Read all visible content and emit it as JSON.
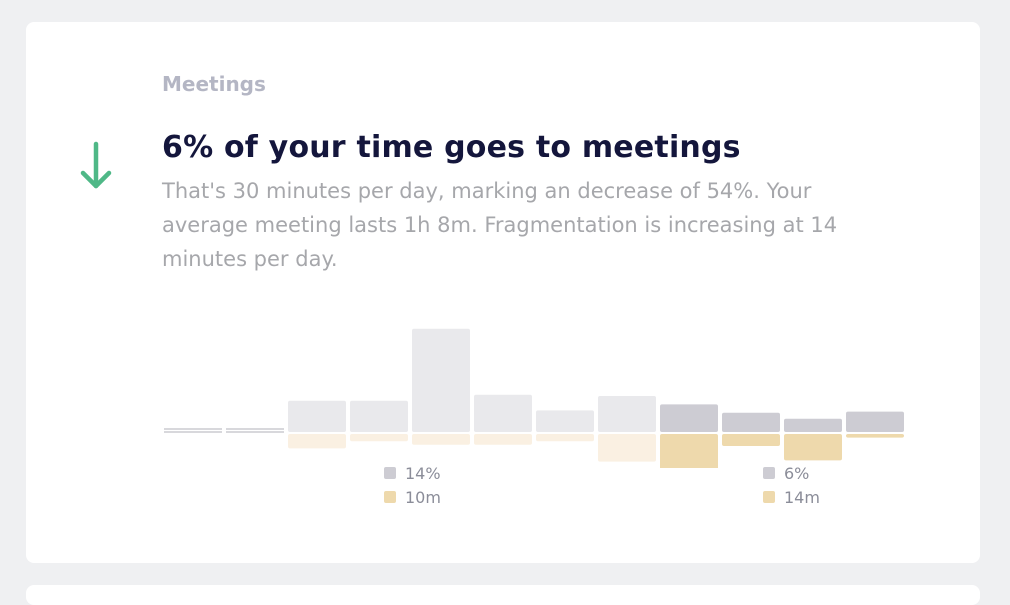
{
  "section": {
    "label": "Meetings"
  },
  "icons": {
    "trend": "arrow-down-icon"
  },
  "headline": "6% of your time goes to meetings",
  "description": "That's 30 minutes per day, marking an decrease of 54%. Your average meeting lasts 1h 8m. Fragmentation is increasing at 14 minutes per day.",
  "colors": {
    "trend_down": "#4fb887",
    "time_past": "#e9e9ec",
    "time_recent": "#cdccd3",
    "frag_past": "#faf0e2",
    "frag_recent": "#eed9ac",
    "flat_marker": "#d8d8dc"
  },
  "legend": {
    "left": {
      "time": "14%",
      "fragmentation": "10m"
    },
    "right": {
      "time": "6%",
      "fragmentation": "14m"
    }
  },
  "chart_data": {
    "type": "bar",
    "note_series": "upward bars = meeting time share, downward bars = fragmentation",
    "periods": 12,
    "meeting_time": [
      0,
      0,
      5.2,
      5.2,
      17.2,
      6.2,
      3.6,
      6.0,
      4.6,
      3.2,
      2.2,
      3.4
    ],
    "fragmentation": [
      0,
      0,
      2.4,
      1.2,
      1.8,
      1.8,
      1.2,
      4.6,
      6.0,
      2.0,
      4.4,
      0.6
    ],
    "recent_from_index": 8,
    "legend_groups": [
      {
        "label_time": "14%",
        "label_frag": "10m"
      },
      {
        "label_time": "6%",
        "label_frag": "14m"
      }
    ]
  }
}
